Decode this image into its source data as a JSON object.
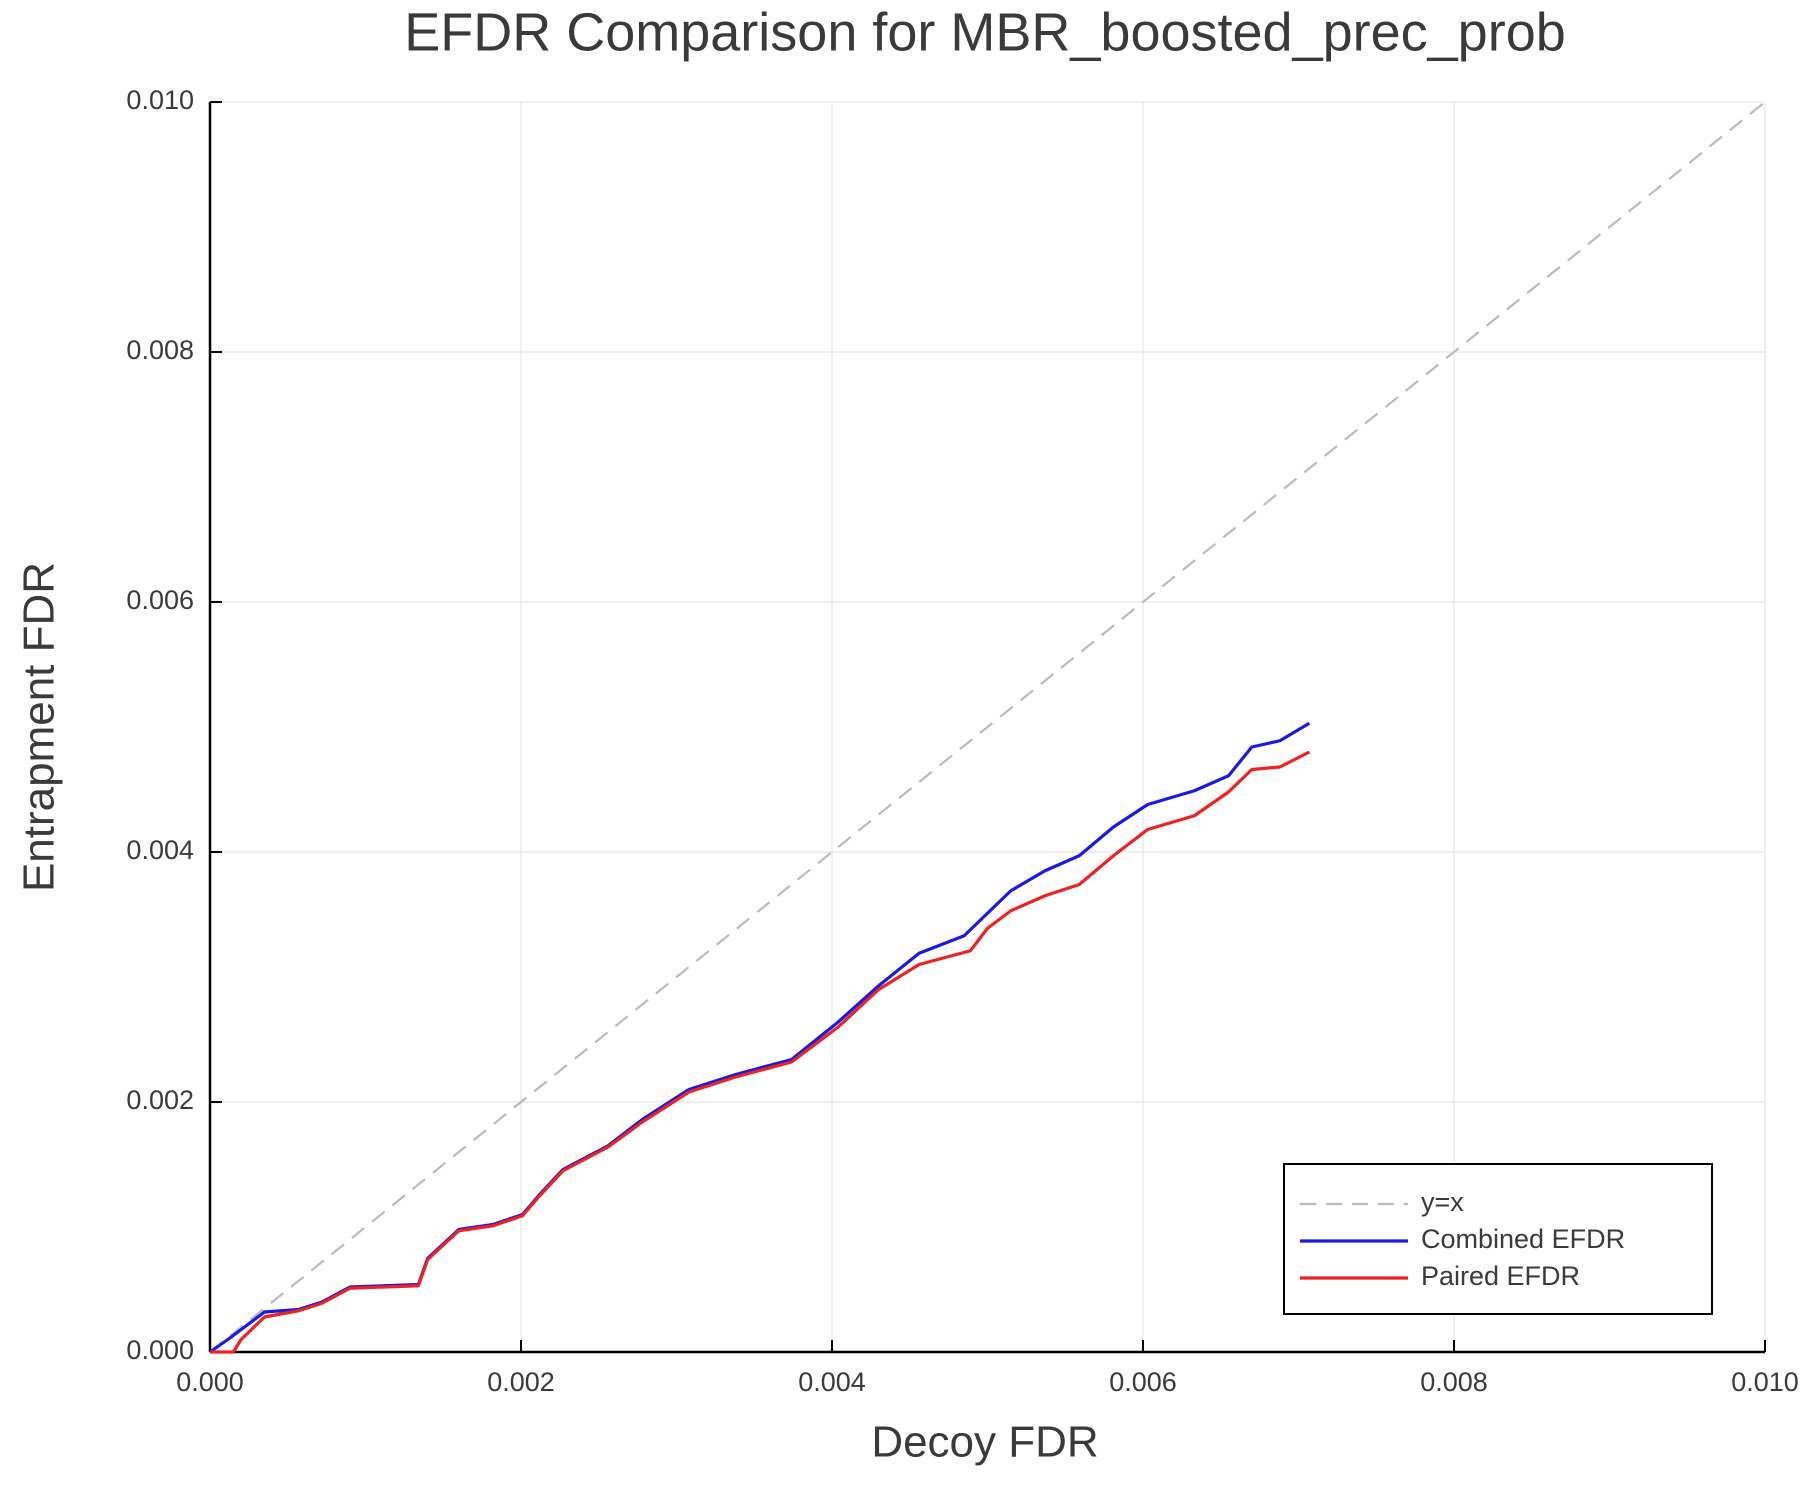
{
  "chart_data": {
    "type": "line",
    "title": "EFDR Comparison for MBR_boosted_prec_prob",
    "x_label": "Decoy FDR",
    "y_label": "Entrapment FDR",
    "xlim": [
      0,
      0.01
    ],
    "ylim": [
      0,
      0.01
    ],
    "xticks": [
      {
        "value": 0,
        "label": "0.000"
      },
      0.002,
      0.004,
      0.006,
      0.008,
      {
        "value": 0.01,
        "label": "0.010"
      }
    ],
    "yticks": [
      {
        "value": 0,
        "label": "0.000"
      },
      0.002,
      0.004,
      0.006,
      0.008,
      {
        "value": 0.01,
        "label": "0.010"
      }
    ],
    "grid": true,
    "legend": "lower-right",
    "series": [
      {
        "name": "y=x",
        "color": "#bbbbbb",
        "dashed": true,
        "x": [
          0,
          0.01
        ],
        "values": [
          0,
          0.01
        ]
      },
      {
        "name": "Combined EFDR",
        "color": "#1a1ae6",
        "x": [
          0,
          0.000126,
          0.00035,
          0.00057,
          0.00072,
          0.0009,
          0.00134,
          0.0014,
          0.0016,
          0.00182,
          0.00201,
          0.00212,
          0.00227,
          0.00256,
          0.00278,
          0.00308,
          0.00338,
          0.00374,
          0.00404,
          0.0043,
          0.00456,
          0.00485,
          0.005,
          0.00515,
          0.00537,
          0.00559,
          0.00581,
          0.00603,
          0.00633,
          0.00655,
          0.0067,
          0.00688,
          0.00707
        ],
        "values": [
          0,
          0.00011,
          0.00032,
          0.00034,
          0.0004,
          0.00052,
          0.00054,
          0.00075,
          0.00098,
          0.00102,
          0.0011,
          0.00126,
          0.00146,
          0.00165,
          0.00186,
          0.0021,
          0.00222,
          0.00234,
          0.00264,
          0.00293,
          0.00319,
          0.00333,
          0.00351,
          0.00369,
          0.00385,
          0.00397,
          0.0042,
          0.00438,
          0.00449,
          0.00461,
          0.00484,
          0.00489,
          0.00503
        ]
      },
      {
        "name": "Paired EFDR",
        "color": "#ee2222",
        "x": [
          0,
          0.00015,
          0.0002,
          0.00035,
          0.00057,
          0.00072,
          0.0009,
          0.00134,
          0.0014,
          0.0016,
          0.00182,
          0.00201,
          0.00212,
          0.00227,
          0.00256,
          0.00278,
          0.00308,
          0.00338,
          0.00374,
          0.00404,
          0.0043,
          0.00456,
          0.00489,
          0.005,
          0.00515,
          0.00537,
          0.00559,
          0.00581,
          0.00603,
          0.00633,
          0.00655,
          0.0067,
          0.00688,
          0.00707
        ],
        "values": [
          0,
          0,
          0.0001,
          0.00028,
          0.00033,
          0.00039,
          0.00051,
          0.00053,
          0.00074,
          0.00097,
          0.00101,
          0.00109,
          0.00125,
          0.00145,
          0.00164,
          0.00184,
          0.00208,
          0.0022,
          0.00232,
          0.0026,
          0.0029,
          0.0031,
          0.00321,
          0.00339,
          0.00353,
          0.00365,
          0.00374,
          0.00397,
          0.00418,
          0.00429,
          0.00448,
          0.00466,
          0.00468,
          0.0048
        ]
      }
    ]
  }
}
